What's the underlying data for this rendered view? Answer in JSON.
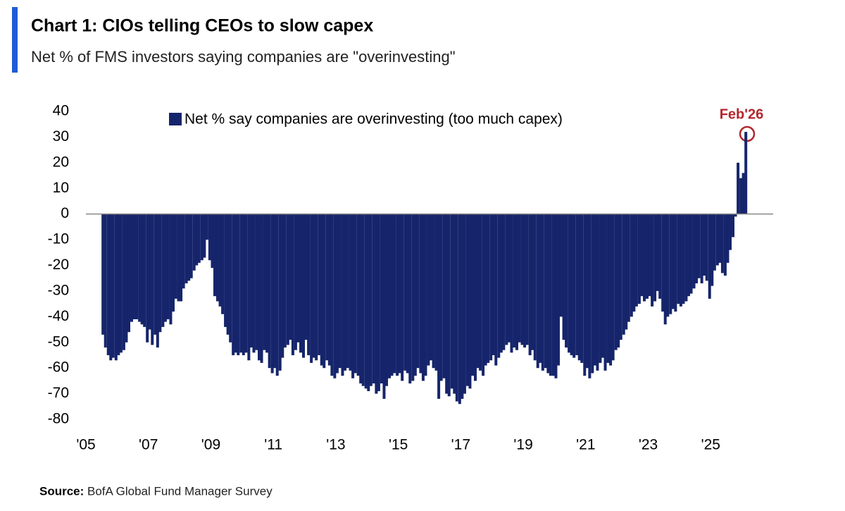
{
  "chart_data": {
    "type": "bar",
    "title": "Chart 1: CIOs telling CEOs to slow capex",
    "subtitle": "Net % of FMS investors saying companies are \"overinvesting\"",
    "source_label": "Source:",
    "source": "BofA Global Fund Manager Survey",
    "annotation": "Feb'26",
    "series": [
      {
        "name": "Net % say companies are overinvesting (too much capex)",
        "color": "#16256b",
        "x": [
          2005.5,
          2005.58,
          2005.67,
          2005.75,
          2005.83,
          2005.92,
          2006,
          2006.08,
          2006.17,
          2006.25,
          2006.33,
          2006.42,
          2006.5,
          2006.58,
          2006.67,
          2006.75,
          2006.83,
          2006.92,
          2007,
          2007.08,
          2007.17,
          2007.25,
          2007.33,
          2007.42,
          2007.5,
          2007.58,
          2007.67,
          2007.75,
          2007.83,
          2007.92,
          2008,
          2008.08,
          2008.17,
          2008.25,
          2008.33,
          2008.42,
          2008.5,
          2008.58,
          2008.67,
          2008.75,
          2008.83,
          2008.92,
          2009,
          2009.08,
          2009.17,
          2009.25,
          2009.33,
          2009.42,
          2009.5,
          2009.58,
          2009.67,
          2009.75,
          2009.83,
          2009.92,
          2010,
          2010.08,
          2010.17,
          2010.25,
          2010.33,
          2010.42,
          2010.5,
          2010.58,
          2010.67,
          2010.75,
          2010.83,
          2010.92,
          2011,
          2011.08,
          2011.17,
          2011.25,
          2011.33,
          2011.42,
          2011.5,
          2011.58,
          2011.67,
          2011.75,
          2011.83,
          2011.92,
          2012,
          2012.08,
          2012.17,
          2012.25,
          2012.33,
          2012.42,
          2012.5,
          2012.58,
          2012.67,
          2012.75,
          2012.83,
          2012.92,
          2013,
          2013.08,
          2013.17,
          2013.25,
          2013.33,
          2013.42,
          2013.5,
          2013.58,
          2013.67,
          2013.75,
          2013.83,
          2013.92,
          2014,
          2014.08,
          2014.17,
          2014.25,
          2014.33,
          2014.42,
          2014.5,
          2014.58,
          2014.67,
          2014.75,
          2014.83,
          2014.92,
          2015,
          2015.08,
          2015.17,
          2015.25,
          2015.33,
          2015.42,
          2015.5,
          2015.58,
          2015.67,
          2015.75,
          2015.83,
          2015.92,
          2016,
          2016.08,
          2016.17,
          2016.25,
          2016.33,
          2016.42,
          2016.5,
          2016.58,
          2016.67,
          2016.75,
          2016.83,
          2016.92,
          2017,
          2017.08,
          2017.17,
          2017.25,
          2017.33,
          2017.42,
          2017.5,
          2017.58,
          2017.67,
          2017.75,
          2017.83,
          2017.92,
          2018,
          2018.08,
          2018.17,
          2018.25,
          2018.33,
          2018.42,
          2018.5,
          2018.58,
          2018.67,
          2018.75,
          2018.83,
          2018.92,
          2019,
          2019.08,
          2019.17,
          2019.25,
          2019.33,
          2019.42,
          2019.5,
          2019.58,
          2019.67,
          2019.75,
          2019.83,
          2019.92,
          2020,
          2020.08,
          2020.17,
          2020.25,
          2020.33,
          2020.42,
          2020.5,
          2020.58,
          2020.67,
          2020.75,
          2020.83,
          2020.92,
          2021,
          2021.08,
          2021.17,
          2021.25,
          2021.33,
          2021.42,
          2021.5,
          2021.58,
          2021.67,
          2021.75,
          2021.83,
          2021.92,
          2022,
          2022.08,
          2022.17,
          2022.25,
          2022.33,
          2022.42,
          2022.5,
          2022.58,
          2022.67,
          2022.75,
          2022.83,
          2022.92,
          2023,
          2023.08,
          2023.17,
          2023.25,
          2023.33,
          2023.42,
          2023.5,
          2023.58,
          2023.67,
          2023.75,
          2023.83,
          2023.92,
          2024,
          2024.08,
          2024.17,
          2024.25,
          2024.33,
          2024.42,
          2024.5,
          2024.58,
          2024.67,
          2024.75,
          2024.83,
          2024.92,
          2025,
          2025.08,
          2025.17,
          2025.25,
          2025.33,
          2025.42,
          2025.5,
          2025.58,
          2025.67,
          2025.75,
          2025.83,
          2025.92,
          2026,
          2026.08
        ],
        "values": [
          -47,
          -52,
          -55,
          -57,
          -56,
          -57,
          -55,
          -54,
          -53,
          -50,
          -46,
          -42,
          -41,
          -41,
          -42,
          -43,
          -44,
          -50,
          -45,
          -51,
          -47,
          -52,
          -46,
          -44,
          -42,
          -41,
          -43,
          -38,
          -33,
          -34,
          -34,
          -29,
          -27,
          -26,
          -25,
          -22,
          -20,
          -19,
          -18,
          -17,
          -10,
          -18,
          -21,
          -32,
          -34,
          -36,
          -39,
          -44,
          -47,
          -50,
          -55,
          -54,
          -55,
          -54,
          -55,
          -54,
          -57,
          -52,
          -54,
          -53,
          -57,
          -58,
          -53,
          -54,
          -60,
          -62,
          -60,
          -63,
          -61,
          -56,
          -52,
          -51,
          -49,
          -55,
          -53,
          -50,
          -54,
          -56,
          -49,
          -55,
          -58,
          -56,
          -57,
          -55,
          -59,
          -60,
          -57,
          -59,
          -63,
          -64,
          -62,
          -60,
          -63,
          -61,
          -60,
          -61,
          -64,
          -62,
          -63,
          -66,
          -67,
          -68,
          -69,
          -67,
          -66,
          -70,
          -69,
          -66,
          -72,
          -67,
          -64,
          -63,
          -62,
          -63,
          -62,
          -65,
          -61,
          -62,
          -66,
          -65,
          -63,
          -60,
          -62,
          -65,
          -63,
          -59,
          -57,
          -60,
          -61,
          -72,
          -65,
          -64,
          -70,
          -71,
          -68,
          -70,
          -73,
          -74,
          -72,
          -70,
          -67,
          -68,
          -63,
          -65,
          -60,
          -61,
          -63,
          -59,
          -58,
          -57,
          -55,
          -59,
          -56,
          -54,
          -53,
          -51,
          -50,
          -54,
          -52,
          -53,
          -50,
          -51,
          -52,
          -51,
          -55,
          -53,
          -57,
          -60,
          -58,
          -61,
          -60,
          -62,
          -63,
          -63,
          -64,
          -59,
          -40,
          -49,
          -52,
          -54,
          -55,
          -56,
          -55,
          -57,
          -58,
          -63,
          -60,
          -64,
          -62,
          -59,
          -61,
          -58,
          -56,
          -61,
          -58,
          -59,
          -57,
          -53,
          -52,
          -49,
          -47,
          -45,
          -42,
          -40,
          -38,
          -36,
          -35,
          -32,
          -34,
          -33,
          -32,
          -36,
          -34,
          -30,
          -33,
          -38,
          -43,
          -40,
          -39,
          -37,
          -38,
          -35,
          -36,
          -35,
          -34,
          -32,
          -31,
          -29,
          -27,
          -25,
          -27,
          -24,
          -26,
          -33,
          -28,
          -22,
          -20,
          -19,
          -23,
          -24,
          -19,
          -14,
          -9,
          -1,
          20,
          14,
          16,
          32
        ]
      }
    ],
    "xlim": [
      2005,
      2027
    ],
    "xticks": [
      {
        "value": 2005,
        "label": "'05"
      },
      {
        "value": 2007,
        "label": "'07"
      },
      {
        "value": 2009,
        "label": "'09"
      },
      {
        "value": 2011,
        "label": "'11"
      },
      {
        "value": 2013,
        "label": "'13"
      },
      {
        "value": 2015,
        "label": "'15"
      },
      {
        "value": 2017,
        "label": "'17"
      },
      {
        "value": 2019,
        "label": "'19"
      },
      {
        "value": 2021,
        "label": "'21"
      },
      {
        "value": 2023,
        "label": "'23"
      },
      {
        "value": 2025,
        "label": "'25"
      }
    ],
    "ylim": [
      -80,
      40
    ],
    "yticks": [
      40,
      30,
      20,
      10,
      0,
      -10,
      -20,
      -30,
      -40,
      -50,
      -60,
      -70,
      -80
    ],
    "grid": false,
    "legend": "top"
  }
}
